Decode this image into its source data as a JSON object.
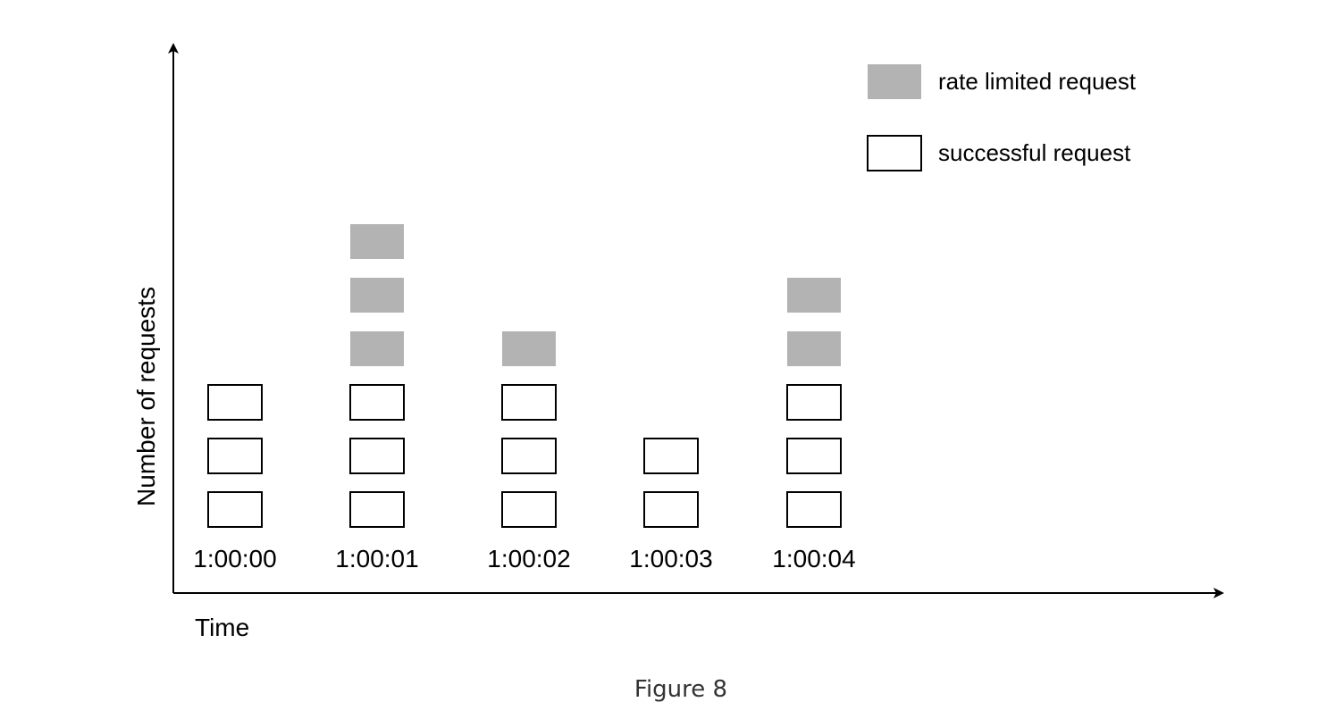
{
  "chart_data": {
    "type": "bar",
    "categories": [
      "1:00:00",
      "1:00:01",
      "1:00:02",
      "1:00:03",
      "1:00:04"
    ],
    "series": [
      {
        "name": "successful request",
        "values": [
          3,
          3,
          3,
          2,
          3
        ],
        "color": "#ffffff",
        "stroke": "#000000"
      },
      {
        "name": "rate limited request",
        "values": [
          0,
          3,
          1,
          0,
          2
        ],
        "color": "#b3b3b3",
        "stroke": "none"
      }
    ],
    "stacked": true,
    "xlabel": "Time",
    "ylabel": "Number of requests",
    "legend_position": "top-right",
    "grid": false
  },
  "caption": "Figure 8"
}
